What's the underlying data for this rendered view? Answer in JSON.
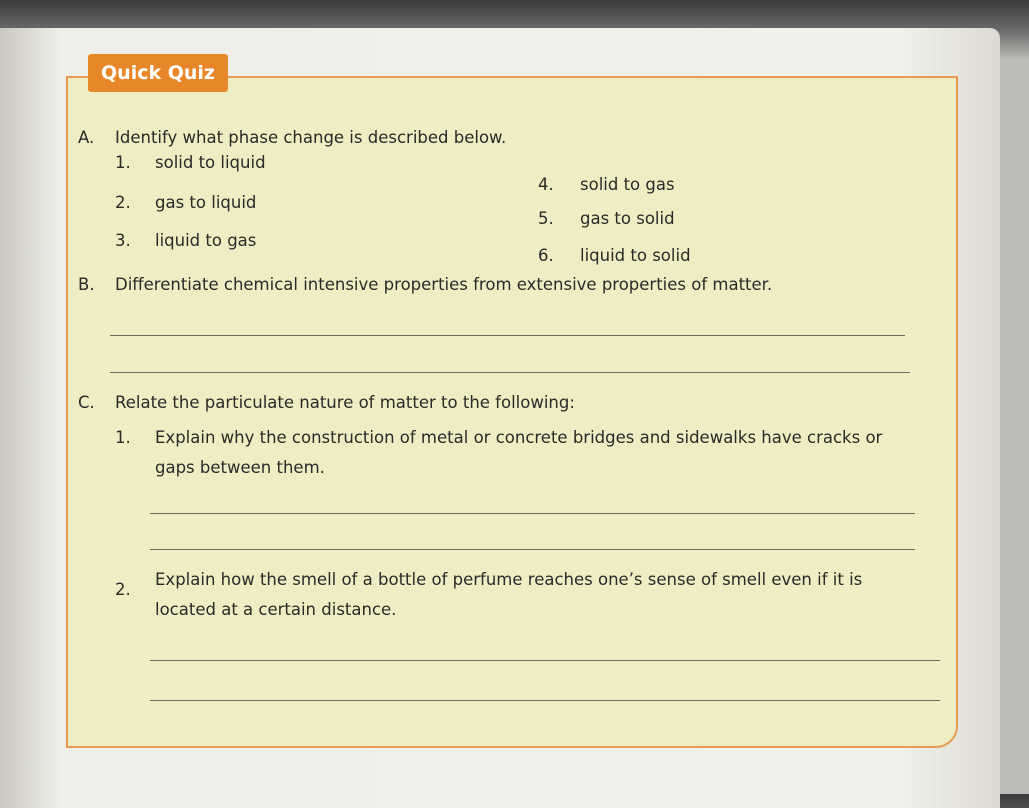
{
  "title": "Quick Quiz",
  "sections": [
    {
      "label": "A.",
      "instruction": "Identify what phase change is described below.",
      "items": [
        {
          "number": "1.",
          "text": "solid to liquid"
        },
        {
          "number": "2.",
          "text": "gas to liquid"
        },
        {
          "number": "3.",
          "text": "liquid to gas"
        },
        {
          "number": "4.",
          "text": "solid to gas"
        },
        {
          "number": "5.",
          "text": "gas to solid"
        },
        {
          "number": "6.",
          "text": "liquid to solid"
        }
      ]
    },
    {
      "label": "B.",
      "instruction": "Differentiate chemical intensive properties from extensive properties of matter."
    },
    {
      "label": "C.",
      "instruction": "Relate the particulate nature of matter to the following:",
      "items": [
        {
          "number": "1.",
          "text": "Explain why the construction of metal or concrete bridges and sidewalks have cracks or gaps between them."
        },
        {
          "number": "2.",
          "text": "Explain how the smell of a bottle of perfume reaches one’s sense of smell even if it is located at a certain distance."
        }
      ]
    }
  ]
}
